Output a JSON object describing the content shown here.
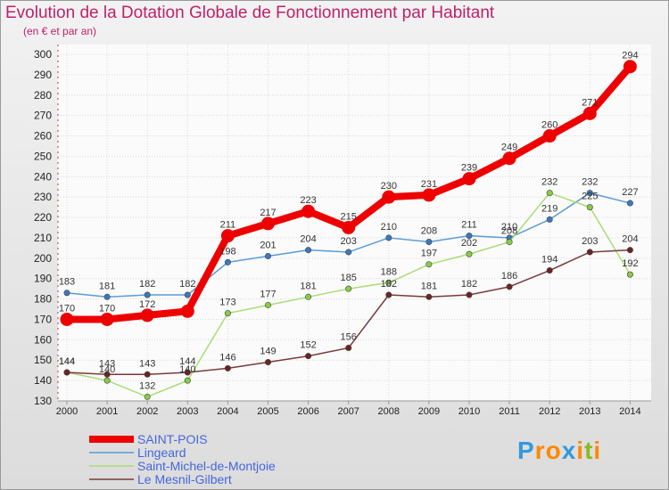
{
  "chart_data": {
    "type": "line",
    "title": "Evolution de la Dotation Globale de Fonctionnement par Habitant",
    "subtitle": "(en € et par an)",
    "x": [
      "2000",
      "2001",
      "2002",
      "2003",
      "2004",
      "2005",
      "2006",
      "2007",
      "2008",
      "2009",
      "2010",
      "2011",
      "2012",
      "2013",
      "2014"
    ],
    "ylim": [
      130,
      300
    ],
    "yticks": [
      130,
      140,
      150,
      160,
      170,
      180,
      190,
      200,
      210,
      220,
      230,
      240,
      250,
      260,
      270,
      280,
      290,
      300
    ],
    "series": [
      {
        "name": "Lingeard",
        "color": "#5b9bd5",
        "marker": "#3a78c0",
        "values": [
          183,
          181,
          182,
          182,
          198,
          201,
          204,
          203,
          210,
          208,
          211,
          210,
          219,
          232,
          227
        ],
        "labels": [
          "183",
          "181",
          "182",
          "182",
          "198",
          "201",
          "204",
          "203",
          "210",
          "208",
          "211",
          "210",
          "219",
          "232",
          "227"
        ]
      },
      {
        "name": "Saint-Michel-de-Montjoie",
        "color": "#aadd77",
        "marker": "#88cc44",
        "values": [
          144,
          140,
          132,
          140,
          173,
          177,
          181,
          185,
          188,
          197,
          202,
          208,
          232,
          225,
          192
        ],
        "labels": [
          "144",
          "140",
          "132",
          "140",
          "173",
          "177",
          "181",
          "185",
          "188",
          "197",
          "202",
          "208",
          "232",
          "225",
          "192"
        ]
      },
      {
        "name": "Le Mesnil-Gilbert",
        "color": "#7a3a3a",
        "marker": "#6b2323",
        "values": [
          144,
          143,
          143,
          144,
          146,
          149,
          152,
          156,
          182,
          181,
          182,
          186,
          194,
          203,
          204
        ],
        "labels": [
          "144",
          "143",
          "143",
          "144",
          "146",
          "149",
          "152",
          "156",
          "182",
          "181",
          "182",
          "186",
          "194",
          "203",
          "204"
        ]
      },
      {
        "name": "SAINT-POIS",
        "color": "#ee0000",
        "marker": "#ee0000",
        "values": [
          170,
          170,
          172,
          174,
          211,
          217,
          223,
          215,
          230,
          231,
          239,
          249,
          260,
          271,
          294
        ],
        "labels": [
          "170",
          "170",
          "172",
          "",
          "211",
          "217",
          "223",
          "215",
          "230",
          "231",
          "239",
          "249",
          "260",
          "271",
          "294"
        ]
      }
    ],
    "legend": [
      "SAINT-POIS",
      "Lingeard",
      "Saint-Michel-de-Montjoie",
      "Le Mesnil-Gilbert"
    ],
    "legend_position": "bottom-left",
    "grid": true
  },
  "logo": {
    "text": "Proxiti",
    "letters": [
      "P",
      "r",
      "o",
      "x",
      "i",
      "t",
      "i"
    ],
    "colors": [
      "#3399dd",
      "#ff8800",
      "#ff8800",
      "#3399dd",
      "#ff8800",
      "#88bb22",
      "#ff8800"
    ]
  }
}
